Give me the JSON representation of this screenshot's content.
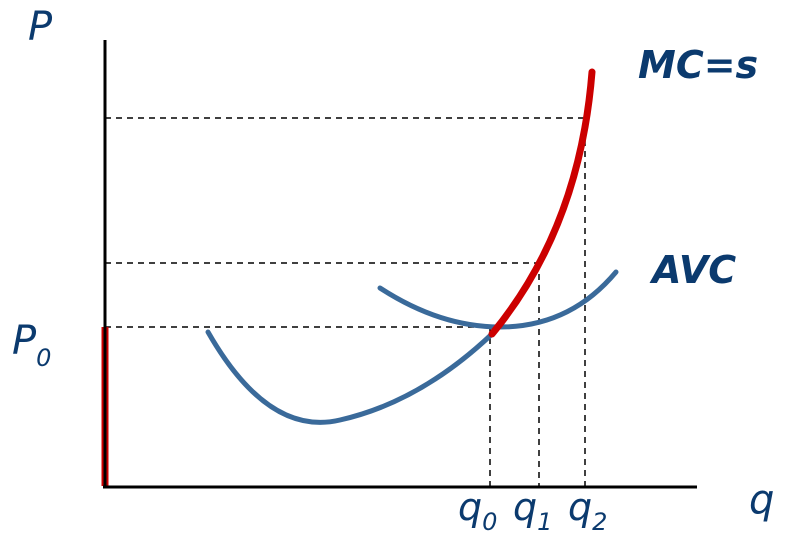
{
  "axes": {
    "y_label": "P",
    "x_label": "q"
  },
  "curves": {
    "mc_label": "MC=s",
    "avc_label": "AVC"
  },
  "price": {
    "base": "P",
    "sub": "0"
  },
  "quantities": [
    {
      "base": "q",
      "sub": "0"
    },
    {
      "base": "q",
      "sub": "1"
    },
    {
      "base": "q",
      "sub": "2"
    }
  ],
  "colors": {
    "axis": "#000000",
    "mc_supply": "#cc0000",
    "avc": "#3a6a9a",
    "label": "#0b3a6e"
  }
}
